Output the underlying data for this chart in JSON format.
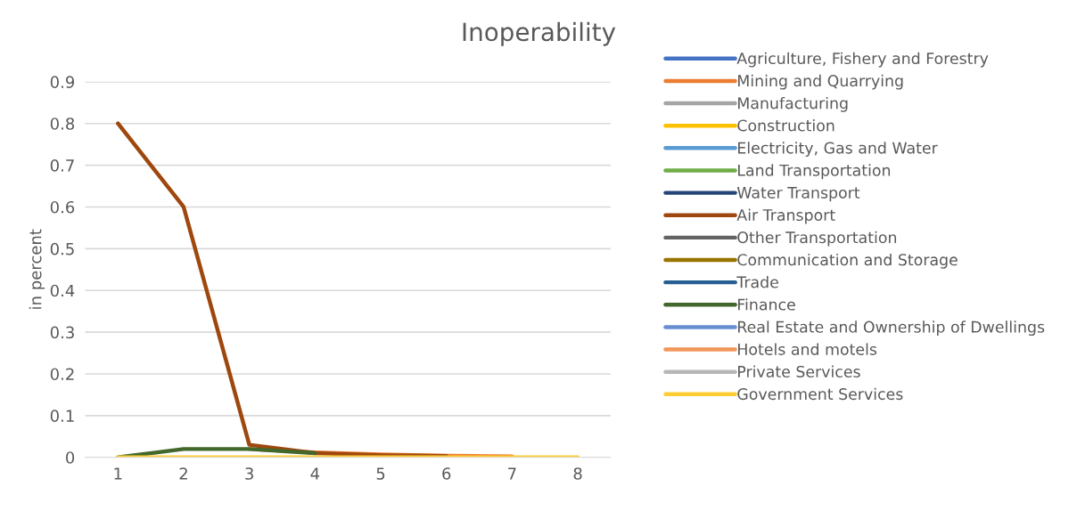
{
  "chart_data": {
    "type": "line",
    "title": "Inoperability",
    "ylabel": "in percent",
    "categories": [
      "1",
      "2",
      "3",
      "4",
      "5",
      "6",
      "7",
      "8"
    ],
    "series": [
      {
        "name": "Agriculture, Fishery and Forestry",
        "color": "#4472c4",
        "values": [
          null,
          null,
          null,
          null,
          null,
          null,
          null,
          null
        ]
      },
      {
        "name": "Mining and Quarrying",
        "color": "#ed7d31",
        "values": [
          null,
          null,
          0.02,
          0.012,
          0.007,
          0.004,
          0.002,
          null
        ]
      },
      {
        "name": "Manufacturing",
        "color": "#a5a5a5",
        "values": [
          null,
          null,
          null,
          null,
          null,
          null,
          null,
          null
        ]
      },
      {
        "name": "Construction",
        "color": "#ffc000",
        "values": [
          null,
          null,
          null,
          null,
          null,
          null,
          null,
          null
        ]
      },
      {
        "name": "Electricity, Gas and Water",
        "color": "#5b9bd5",
        "values": [
          null,
          null,
          null,
          null,
          null,
          null,
          null,
          null
        ]
      },
      {
        "name": "Land Transportation",
        "color": "#70ad47",
        "values": [
          null,
          null,
          null,
          null,
          null,
          null,
          null,
          null
        ]
      },
      {
        "name": "Water Transport",
        "color": "#264478",
        "values": [
          null,
          null,
          null,
          null,
          null,
          null,
          null,
          null
        ]
      },
      {
        "name": "Air Transport",
        "color": "#9e480e",
        "values": [
          0.8,
          0.6,
          0.03,
          0.01,
          0.005,
          0.003,
          null,
          null
        ]
      },
      {
        "name": "Other Transportation",
        "color": "#636363",
        "values": [
          null,
          null,
          null,
          null,
          null,
          null,
          null,
          null
        ]
      },
      {
        "name": "Communication and Storage",
        "color": "#997300",
        "values": [
          null,
          null,
          null,
          null,
          null,
          null,
          null,
          null
        ]
      },
      {
        "name": "Trade",
        "color": "#255e91",
        "values": [
          null,
          null,
          null,
          null,
          null,
          null,
          null,
          null
        ]
      },
      {
        "name": "Finance",
        "color": "#43682b",
        "values": [
          0,
          0.02,
          0.02,
          0.01,
          null,
          null,
          null,
          null
        ]
      },
      {
        "name": "Real Estate and Ownership of Dwellings",
        "color": "#698ed0",
        "values": [
          null,
          null,
          null,
          null,
          null,
          null,
          null,
          null
        ]
      },
      {
        "name": "Hotels and motels",
        "color": "#f1975a",
        "values": [
          null,
          null,
          null,
          null,
          null,
          null,
          null,
          null
        ]
      },
      {
        "name": "Private Services",
        "color": "#b7b7b7",
        "values": [
          null,
          null,
          null,
          null,
          null,
          null,
          null,
          null
        ]
      },
      {
        "name": "Government Services",
        "color": "#ffcd33",
        "values": [
          0,
          0,
          0,
          0,
          0,
          0,
          0,
          0
        ]
      }
    ],
    "ylim": [
      0,
      0.9
    ],
    "yticks": [
      0,
      0.1,
      0.2,
      0.3,
      0.4,
      0.5,
      0.6,
      0.7,
      0.8,
      0.9
    ],
    "grid": "y",
    "legend": "right",
    "marker": "none",
    "line_style": "solid"
  }
}
